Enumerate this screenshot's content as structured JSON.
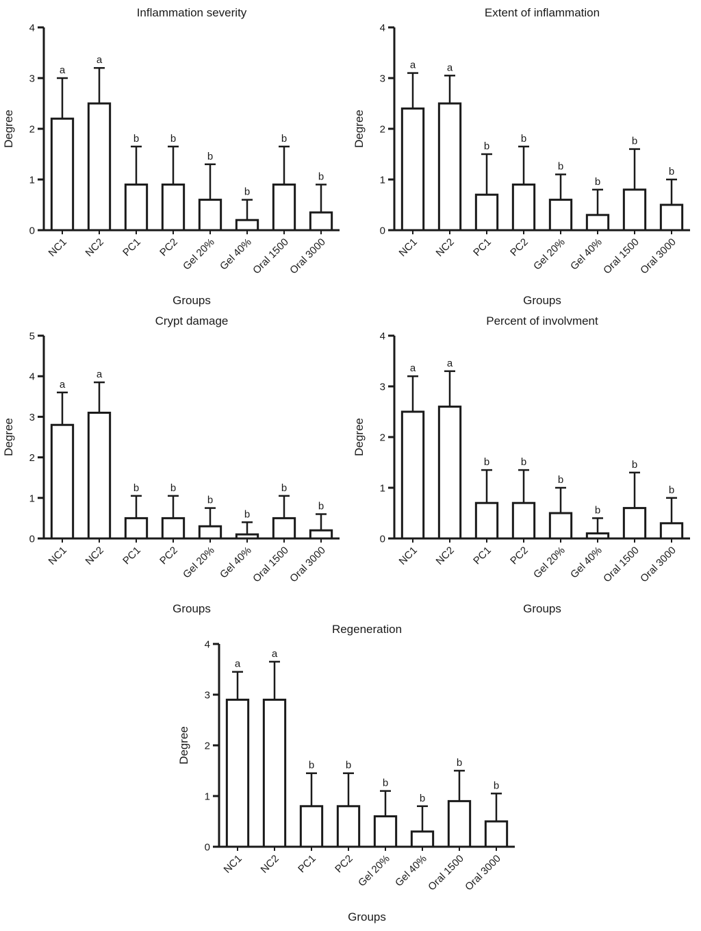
{
  "figure": {
    "background": "#ffffff",
    "ink": "#1a1a1a",
    "bar_fill": "#ffffff"
  },
  "chart_data": [
    {
      "type": "bar",
      "title": "Inflammation severity",
      "xlabel": "Groups",
      "ylabel": "Degree",
      "ylim": [
        0,
        4
      ],
      "yticks": [
        0,
        1,
        2,
        3,
        4
      ],
      "grid": false,
      "categories": [
        "NC1",
        "NC2",
        "PC1",
        "PC2",
        "Gel 20%",
        "Gel 40%",
        "Oral 1500",
        "Oral 3000"
      ],
      "values": [
        2.2,
        2.5,
        0.9,
        0.9,
        0.6,
        0.2,
        0.9,
        0.35
      ],
      "error_top": [
        3.0,
        3.2,
        1.65,
        1.65,
        1.3,
        0.6,
        1.65,
        0.9
      ],
      "sig_labels": [
        "a",
        "a",
        "b",
        "b",
        "b",
        "b",
        "b",
        "b"
      ]
    },
    {
      "type": "bar",
      "title": "Extent of inflammation",
      "xlabel": "Groups",
      "ylabel": "Degree",
      "ylim": [
        0,
        4
      ],
      "yticks": [
        0,
        1,
        2,
        3,
        4
      ],
      "grid": false,
      "categories": [
        "NC1",
        "NC2",
        "PC1",
        "PC2",
        "Gel 20%",
        "Gel 40%",
        "Oral 1500",
        "Oral 3000"
      ],
      "values": [
        2.4,
        2.5,
        0.7,
        0.9,
        0.6,
        0.3,
        0.8,
        0.5
      ],
      "error_top": [
        3.1,
        3.05,
        1.5,
        1.65,
        1.1,
        0.8,
        1.6,
        1.0
      ],
      "sig_labels": [
        "a",
        "a",
        "b",
        "b",
        "b",
        "b",
        "b",
        "b"
      ]
    },
    {
      "type": "bar",
      "title": "Crypt damage",
      "xlabel": "Groups",
      "ylabel": "Degree",
      "ylim": [
        0,
        5
      ],
      "yticks": [
        0,
        1,
        2,
        3,
        4,
        5
      ],
      "grid": false,
      "categories": [
        "NC1",
        "NC2",
        "PC1",
        "PC2",
        "Gel 20%",
        "Gel 40%",
        "Oral 1500",
        "Oral 3000"
      ],
      "values": [
        2.8,
        3.1,
        0.5,
        0.5,
        0.3,
        0.1,
        0.5,
        0.2
      ],
      "error_top": [
        3.6,
        3.85,
        1.05,
        1.05,
        0.75,
        0.4,
        1.05,
        0.6
      ],
      "sig_labels": [
        "a",
        "a",
        "b",
        "b",
        "b",
        "b",
        "b",
        "b"
      ]
    },
    {
      "type": "bar",
      "title": "Percent of involvment",
      "xlabel": "Groups",
      "ylabel": "Degree",
      "ylim": [
        0,
        4
      ],
      "yticks": [
        0,
        1,
        2,
        3,
        4
      ],
      "grid": false,
      "categories": [
        "NC1",
        "NC2",
        "PC1",
        "PC2",
        "Gel 20%",
        "Gel 40%",
        "Oral 1500",
        "Oral 3000"
      ],
      "values": [
        2.5,
        2.6,
        0.7,
        0.7,
        0.5,
        0.1,
        0.6,
        0.3
      ],
      "error_top": [
        3.2,
        3.3,
        1.35,
        1.35,
        1.0,
        0.4,
        1.3,
        0.8
      ],
      "sig_labels": [
        "a",
        "a",
        "b",
        "b",
        "b",
        "b",
        "b",
        "b"
      ]
    },
    {
      "type": "bar",
      "title": "Regeneration",
      "xlabel": "Groups",
      "ylabel": "Degree",
      "ylim": [
        0,
        4
      ],
      "yticks": [
        0,
        1,
        2,
        3,
        4
      ],
      "grid": false,
      "categories": [
        "NC1",
        "NC2",
        "PC1",
        "PC2",
        "Gel 20%",
        "Gel 40%",
        "Oral 1500",
        "Oral 3000"
      ],
      "values": [
        2.9,
        2.9,
        0.8,
        0.8,
        0.6,
        0.3,
        0.9,
        0.5
      ],
      "error_top": [
        3.45,
        3.65,
        1.45,
        1.45,
        1.1,
        0.8,
        1.5,
        1.05
      ],
      "sig_labels": [
        "a",
        "a",
        "b",
        "b",
        "b",
        "b",
        "b",
        "b"
      ]
    }
  ]
}
